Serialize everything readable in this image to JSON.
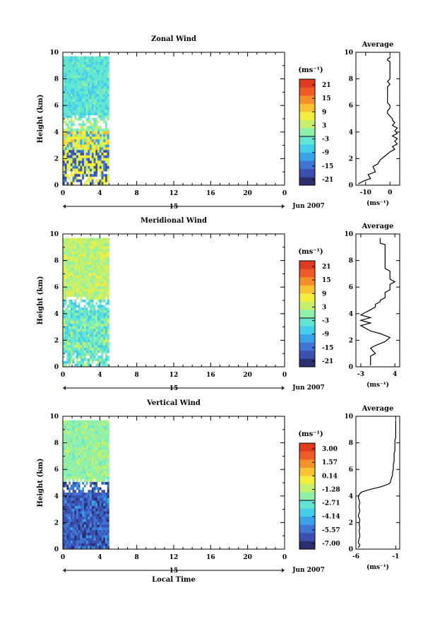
{
  "colors": {
    "colorbar": [
      "#2b2f6e",
      "#3a4fb0",
      "#3f76d6",
      "#3aa3e8",
      "#42cdea",
      "#62e6d3",
      "#8ff0a8",
      "#c6f06b",
      "#f2ee3b",
      "#f8c32f",
      "#f68f2a",
      "#ef5a25",
      "#e03b1f"
    ],
    "background": "#ffffff"
  },
  "shared": {
    "time_ticks": [
      "0",
      "4",
      "8",
      "12",
      "16",
      "20",
      "0"
    ],
    "date_label": "Jun 2007",
    "date_marker": "15",
    "ylabel": "Height (km)",
    "height_ticks": [
      "0",
      "2",
      "4",
      "6",
      "8",
      "10"
    ],
    "unit_label": "(ms⁻¹)",
    "avg_title": "Average",
    "xlabel_bottom": "Local Time"
  },
  "chart_data": [
    {
      "type": "heatmap",
      "title": "Zonal Wind",
      "xlabel": "",
      "ylabel": "Height (km)",
      "xlim_hours": [
        0,
        24
      ],
      "ylim": [
        0,
        10
      ],
      "data_hours": [
        0,
        5
      ],
      "colorbar_ticks": [
        "21",
        "15",
        "9",
        "3",
        "-3",
        "-9",
        "-15",
        "-21"
      ],
      "colorbar_range": [
        -24,
        24
      ],
      "average_profile": {
        "title": "Average",
        "xlabel": "(ms⁻¹)",
        "xticks": [
          "-10",
          "0"
        ],
        "xlim": [
          -14,
          4
        ],
        "x": [
          -13,
          -11,
          -8,
          -9,
          -6,
          -7,
          -5,
          -4,
          -2,
          0,
          2,
          1,
          3,
          2,
          3,
          1,
          3,
          2,
          3,
          1,
          2,
          1,
          1,
          0,
          -1,
          -1,
          0,
          0,
          -1,
          -1,
          -1,
          -1,
          -1,
          -1,
          -1,
          0,
          -1,
          0,
          0,
          0,
          0,
          0,
          0,
          0,
          0,
          -1,
          -1,
          0,
          0
        ],
        "y": [
          0.1,
          0.3,
          0.5,
          0.8,
          1.0,
          1.4,
          1.6,
          1.9,
          2.2,
          2.5,
          2.7,
          2.9,
          3.1,
          3.3,
          3.5,
          3.7,
          3.9,
          4.1,
          4.3,
          4.5,
          4.7,
          4.9,
          5.0,
          5.2,
          5.4,
          5.6,
          5.8,
          6.0,
          6.2,
          6.4,
          6.6,
          6.8,
          7.0,
          7.2,
          7.4,
          7.6,
          7.8,
          8.0,
          8.2,
          8.4,
          8.6,
          8.8,
          9.0,
          9.2,
          9.3,
          9.4,
          9.5,
          9.6,
          9.7
        ]
      }
    },
    {
      "type": "heatmap",
      "title": "Meridional Wind",
      "xlabel": "",
      "ylabel": "Height (km)",
      "xlim_hours": [
        0,
        24
      ],
      "ylim": [
        0,
        10
      ],
      "data_hours": [
        0,
        5
      ],
      "colorbar_ticks": [
        "21",
        "15",
        "9",
        "3",
        "-3",
        "-9",
        "-15",
        "-21"
      ],
      "colorbar_range": [
        -24,
        24
      ],
      "average_profile": {
        "title": "Average",
        "xlabel": "(ms⁻¹)",
        "xticks": [
          "-3",
          "4"
        ],
        "xlim": [
          -4,
          5
        ],
        "x": [
          -1,
          -1,
          -1,
          -1,
          0,
          -1,
          0,
          2,
          3,
          1,
          -1,
          -2,
          -3,
          -1,
          -3,
          -1,
          -3,
          -2,
          -1,
          0,
          0,
          1,
          1,
          2,
          2,
          2,
          3,
          3,
          3,
          4,
          3,
          3,
          3,
          3,
          2,
          2,
          2,
          2,
          2,
          2,
          2,
          2,
          2,
          2,
          1,
          1,
          1,
          1,
          1
        ],
        "y": [
          0.1,
          0.3,
          0.5,
          0.8,
          1.0,
          1.4,
          1.6,
          1.9,
          2.2,
          2.5,
          2.7,
          2.9,
          3.1,
          3.3,
          3.5,
          3.7,
          3.9,
          4.1,
          4.3,
          4.5,
          4.7,
          4.9,
          5.0,
          5.2,
          5.4,
          5.6,
          5.8,
          6.0,
          6.2,
          6.4,
          6.6,
          6.8,
          7.0,
          7.2,
          7.4,
          7.6,
          7.8,
          8.0,
          8.2,
          8.4,
          8.6,
          8.8,
          9.0,
          9.2,
          9.3,
          9.4,
          9.5,
          9.6,
          9.7
        ]
      }
    },
    {
      "type": "heatmap",
      "title": "Vertical Wind",
      "xlabel": "Local Time",
      "ylabel": "Height (km)",
      "xlim_hours": [
        0,
        24
      ],
      "ylim": [
        0,
        10
      ],
      "data_hours": [
        0,
        5
      ],
      "colorbar_ticks": [
        "3.00",
        "1.57",
        "0.14",
        "-1.28",
        "-2.71",
        "-4.14",
        "-5.57",
        "-7.00"
      ],
      "colorbar_range": [
        -8,
        4
      ],
      "average_profile": {
        "title": "Average",
        "xlabel": "(ms⁻¹)",
        "xticks": [
          "-6",
          "-1"
        ],
        "xlim": [
          -6,
          -0.5
        ],
        "x": [
          -5.7,
          -5.5,
          -5.7,
          -5.6,
          -5.5,
          -5.6,
          -5.5,
          -5.6,
          -5.5,
          -5.7,
          -5.6,
          -5.5,
          -5.6,
          -5.6,
          -5.5,
          -5.6,
          -5.7,
          -5.6,
          -5.3,
          -4.2,
          -2.8,
          -1.9,
          -1.7,
          -1.6,
          -1.5,
          -1.4,
          -1.4,
          -1.3,
          -1.3,
          -1.3,
          -1.2,
          -1.2,
          -1.2,
          -1.2,
          -1.1,
          -1.1,
          -1.1,
          -1.1,
          -1.1,
          -1.0,
          -1.0,
          -1.0,
          -1.0,
          -1.0,
          -1.0,
          -1.0,
          -1.0,
          -1.0,
          -1.0
        ],
        "y": [
          0.1,
          0.3,
          0.5,
          0.8,
          1.0,
          1.4,
          1.6,
          1.9,
          2.2,
          2.5,
          2.7,
          2.9,
          3.1,
          3.3,
          3.5,
          3.7,
          3.9,
          4.1,
          4.3,
          4.5,
          4.7,
          4.9,
          5.0,
          5.2,
          5.4,
          5.6,
          5.8,
          6.0,
          6.2,
          6.4,
          6.6,
          6.8,
          7.0,
          7.2,
          7.4,
          7.6,
          7.8,
          8.0,
          8.2,
          8.4,
          8.6,
          8.8,
          9.0,
          9.2,
          9.3,
          9.4,
          9.5,
          9.6,
          9.7
        ]
      }
    }
  ]
}
